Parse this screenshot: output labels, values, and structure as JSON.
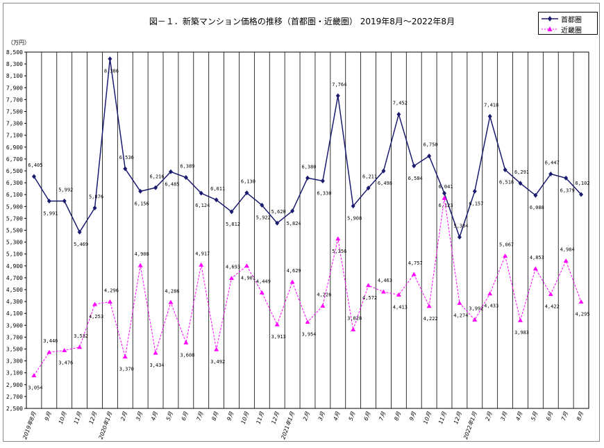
{
  "chart_data": {
    "type": "line",
    "title": "図－１．新築マンション価格の推移（首都圏・近畿圏） 2019年8月～2022年8月",
    "ylabel": "（万円）",
    "ylim": [
      2500,
      8500
    ],
    "ystep": 200,
    "grid": "vertical",
    "legend_position": "top-right",
    "categories": [
      "2019年8月",
      "9月",
      "10月",
      "11月",
      "12月",
      "2020年1月",
      "2月",
      "3月",
      "4月",
      "5月",
      "6月",
      "7月",
      "8月",
      "9月",
      "10月",
      "11月",
      "12月",
      "2021年1月",
      "2月",
      "3月",
      "4月",
      "5月",
      "6月",
      "7月",
      "8月",
      "9月",
      "10月",
      "11月",
      "12月",
      "2022年1月",
      "2月",
      "3月",
      "4月",
      "5月",
      "6月",
      "7月",
      "8月"
    ],
    "series": [
      {
        "name": "首都圏",
        "color": "#1a1a6e",
        "marker": "diamond",
        "values": [
          6405,
          5991,
          5992,
          5469,
          5876,
          8386,
          6536,
          6156,
          6216,
          6485,
          6389,
          6124,
          6011,
          5812,
          6130,
          5922,
          5620,
          5824,
          6380,
          6330,
          7764,
          5908,
          6211,
          6498,
          7452,
          6584,
          6750,
          6123,
          5384,
          6157,
          7418,
          6518,
          6291,
          6088,
          6447,
          6379,
          6102
        ]
      },
      {
        "name": "近畿圏",
        "color": "#ff00ff",
        "marker": "triangle",
        "values": [
          3054,
          3446,
          3476,
          3532,
          4253,
          4296,
          3370,
          4908,
          3434,
          4286,
          3608,
          4917,
          3492,
          4693,
          4901,
          4449,
          3913,
          4629,
          3954,
          4226,
          5356,
          3828,
          4572,
          4463,
          4413,
          4757,
          4222,
          6041,
          4274,
          3992,
          4433,
          5067,
          3983,
          4853,
          4422,
          4984,
          4295
        ]
      }
    ]
  }
}
